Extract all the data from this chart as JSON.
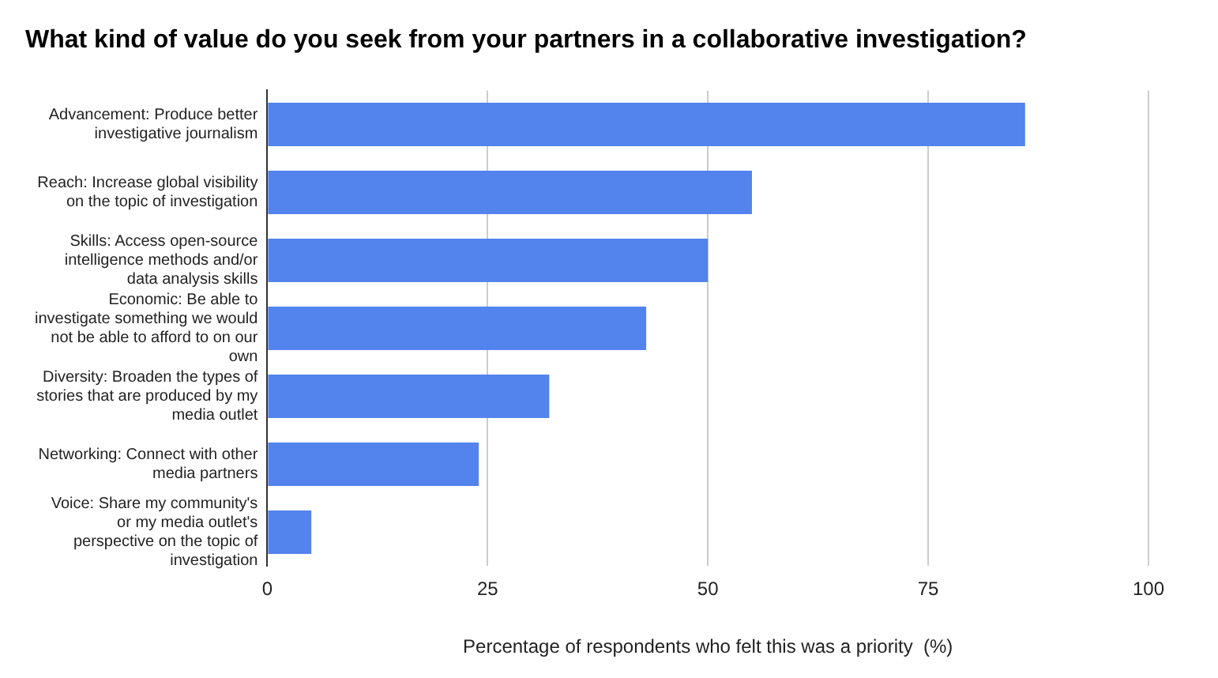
{
  "chart_data": {
    "type": "bar",
    "orientation": "horizontal",
    "title": "What kind of value do you seek from your partners in a collaborative investigation?",
    "xlabel": "Percentage of respondents who felt this was a priority  (%)",
    "categories": [
      "Advancement: Produce better investigative journalism",
      "Reach: Increase global visibility on the topic of investigation",
      "Skills: Access open-source intelligence methods and/or data analysis skills",
      "Economic: Be able to investigate something we would not be able to afford to on our own",
      "Diversity: Broaden the types of stories that are produced by my media outlet",
      "Networking: Connect with other media partners",
      "Voice: Share my community's or my media outlet's perspective on the topic of investigation"
    ],
    "values": [
      86,
      55,
      50,
      43,
      32,
      24,
      5
    ],
    "color": "#5383ec",
    "xlim": [
      0,
      100
    ],
    "xticks": [
      0,
      25,
      50,
      75,
      100
    ],
    "grid": "x",
    "legend": false
  }
}
